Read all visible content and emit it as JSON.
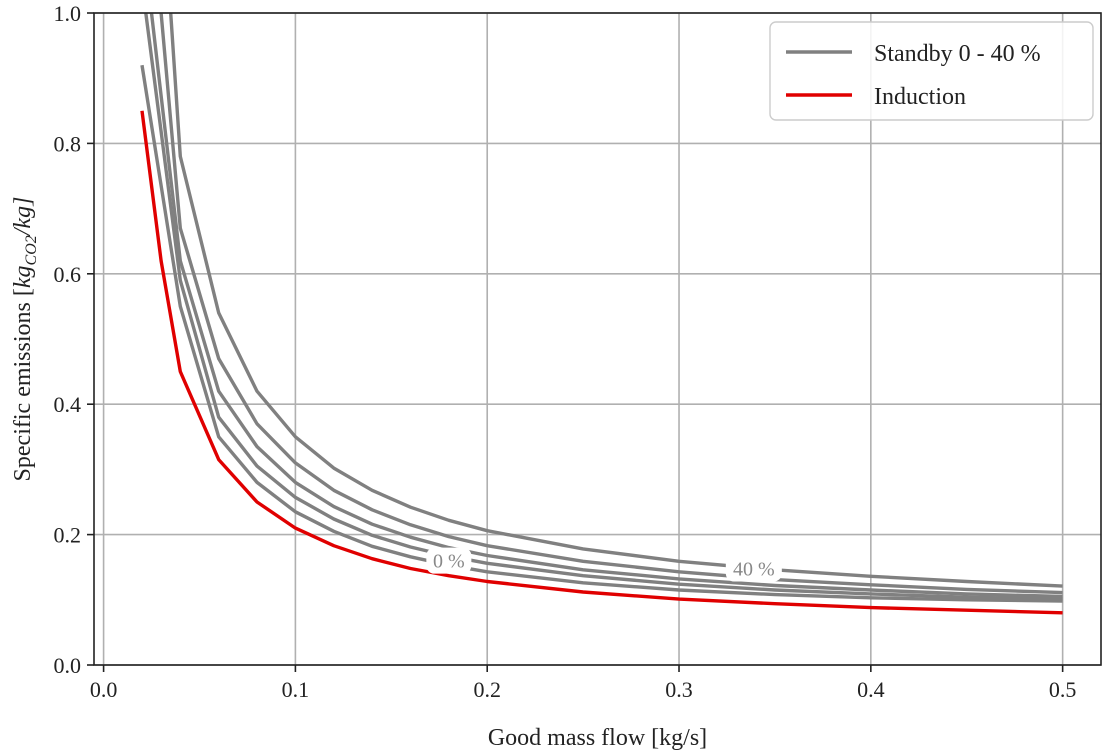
{
  "chart_data": {
    "type": "line",
    "xlabel": "Good mass flow [kg/s]",
    "ylabel_main": "Specific emissions [",
    "ylabel_math_base": "kg",
    "ylabel_math_sub": "CO2",
    "ylabel_math_tail": "/kg]",
    "xlim": [
      -0.005,
      0.52
    ],
    "ylim": [
      0.0,
      1.0
    ],
    "xticks": [
      0.0,
      0.1,
      0.2,
      0.3,
      0.4,
      0.5
    ],
    "xtick_labels": [
      "0.0",
      "0.1",
      "0.2",
      "0.3",
      "0.4",
      "0.5"
    ],
    "yticks": [
      0.0,
      0.2,
      0.4,
      0.6,
      0.8,
      1.0
    ],
    "ytick_labels": [
      "0.0",
      "0.2",
      "0.4",
      "0.6",
      "0.8",
      "1.0"
    ],
    "grid": true,
    "legend_position": "top-right",
    "legend": [
      {
        "label": "Standby 0 - 40 %",
        "color": "#808080"
      },
      {
        "label": "Induction",
        "color": "#e00000"
      }
    ],
    "curve_labels": [
      {
        "text": "0 %",
        "x": 0.18,
        "y": 0.16
      },
      {
        "text": "40 %",
        "x": 0.339,
        "y": 0.148
      }
    ],
    "series": [
      {
        "color": "#808080",
        "x": [
          0.02,
          0.04,
          0.06,
          0.08,
          0.1,
          0.12,
          0.14,
          0.16,
          0.18,
          0.2,
          0.25,
          0.3,
          0.35,
          0.4,
          0.45,
          0.5
        ],
        "y": [
          0.92,
          0.55,
          0.35,
          0.28,
          0.235,
          0.205,
          0.182,
          0.166,
          0.153,
          0.143,
          0.126,
          0.115,
          0.108,
          0.103,
          0.1,
          0.098
        ]
      },
      {
        "color": "#808080",
        "x": [
          0.022,
          0.04,
          0.06,
          0.08,
          0.1,
          0.12,
          0.14,
          0.16,
          0.18,
          0.2,
          0.25,
          0.3,
          0.35,
          0.4,
          0.45,
          0.5
        ],
        "y": [
          1.0,
          0.59,
          0.38,
          0.305,
          0.257,
          0.224,
          0.199,
          0.181,
          0.167,
          0.156,
          0.137,
          0.124,
          0.115,
          0.109,
          0.104,
          0.101
        ]
      },
      {
        "color": "#808080",
        "x": [
          0.025,
          0.04,
          0.06,
          0.08,
          0.1,
          0.12,
          0.14,
          0.16,
          0.18,
          0.2,
          0.25,
          0.3,
          0.35,
          0.4,
          0.45,
          0.5
        ],
        "y": [
          1.0,
          0.62,
          0.42,
          0.335,
          0.28,
          0.243,
          0.216,
          0.196,
          0.18,
          0.168,
          0.146,
          0.132,
          0.122,
          0.115,
          0.109,
          0.105
        ]
      },
      {
        "color": "#808080",
        "x": [
          0.03,
          0.04,
          0.06,
          0.08,
          0.1,
          0.12,
          0.14,
          0.16,
          0.18,
          0.2,
          0.25,
          0.3,
          0.35,
          0.4,
          0.45,
          0.5
        ],
        "y": [
          1.0,
          0.67,
          0.47,
          0.37,
          0.31,
          0.268,
          0.238,
          0.215,
          0.197,
          0.183,
          0.159,
          0.143,
          0.131,
          0.123,
          0.116,
          0.111
        ]
      },
      {
        "color": "#808080",
        "x": [
          0.035,
          0.04,
          0.06,
          0.08,
          0.1,
          0.12,
          0.14,
          0.16,
          0.18,
          0.2,
          0.25,
          0.3,
          0.35,
          0.4,
          0.45,
          0.5
        ],
        "y": [
          1.0,
          0.78,
          0.54,
          0.42,
          0.35,
          0.302,
          0.268,
          0.242,
          0.222,
          0.206,
          0.178,
          0.159,
          0.146,
          0.136,
          0.128,
          0.121
        ]
      },
      {
        "color": "#e00000",
        "x": [
          0.02,
          0.03,
          0.04,
          0.06,
          0.08,
          0.1,
          0.12,
          0.14,
          0.16,
          0.18,
          0.2,
          0.25,
          0.3,
          0.35,
          0.4,
          0.45,
          0.5
        ],
        "y": [
          0.85,
          0.62,
          0.45,
          0.315,
          0.25,
          0.21,
          0.183,
          0.163,
          0.148,
          0.137,
          0.128,
          0.112,
          0.101,
          0.094,
          0.088,
          0.084,
          0.08
        ]
      }
    ]
  }
}
